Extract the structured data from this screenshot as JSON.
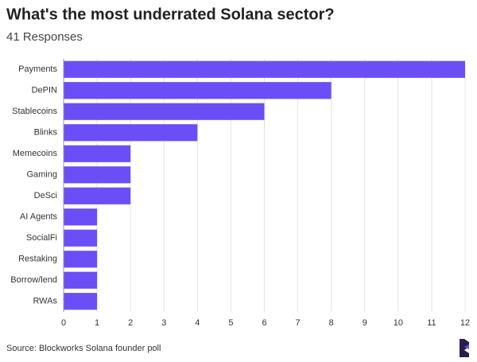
{
  "chart_data": {
    "type": "bar",
    "orientation": "horizontal",
    "title": "What's the most underrated Solana sector?",
    "subtitle": "41 Responses",
    "source": "Source: Blockworks Solana founder poll",
    "categories": [
      "Payments",
      "DePIN",
      "Stablecoins",
      "Blinks",
      "Memecoins",
      "Gaming",
      "DeSci",
      "AI Agents",
      "SocialFi",
      "Restaking",
      "Borrow/lend",
      "RWAs"
    ],
    "values": [
      12,
      8,
      6,
      4,
      2,
      2,
      2,
      1,
      1,
      1,
      1,
      1
    ],
    "color": "#6c4ef6",
    "xlim": [
      0,
      12
    ],
    "xticks": [
      0,
      1,
      2,
      3,
      4,
      5,
      6,
      7,
      8,
      9,
      10,
      11,
      12
    ],
    "grid": true
  }
}
